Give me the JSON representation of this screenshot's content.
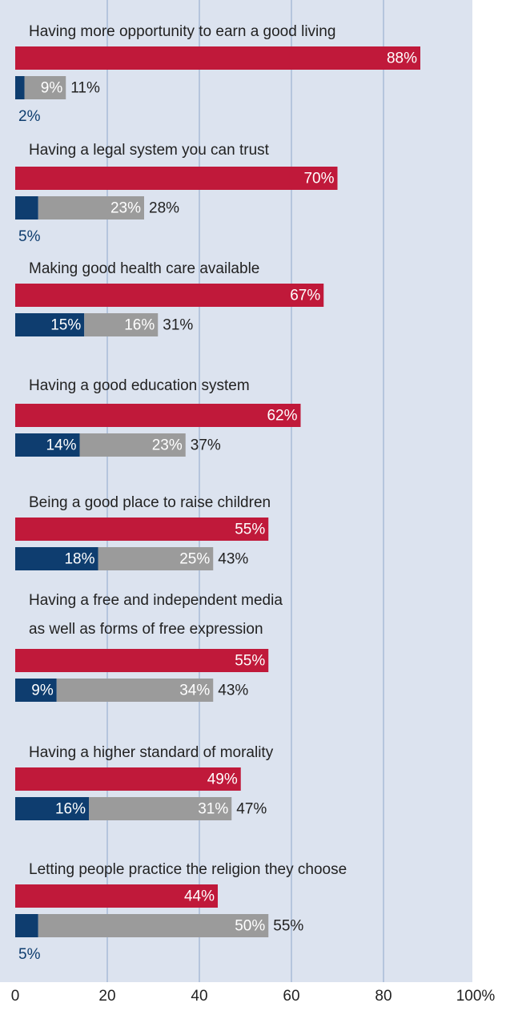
{
  "chart_data": {
    "type": "bar",
    "categories": [
      "Having more opportunity to earn a good living",
      "Having a legal system you can trust",
      "Making good health care available",
      "Having a good education system",
      "Being a good place to raise children",
      "Having a free and independent media\nas well as forms of free expression",
      "Having a higher standard of morality",
      "Letting people practice the religion they choose"
    ],
    "series": [
      {
        "color": "#c0193a",
        "values": [
          88,
          70,
          67,
          62,
          55,
          55,
          49,
          44
        ],
        "value_labels": [
          "88%",
          "70%",
          "67%",
          "62%",
          "55%",
          "55%",
          "49%",
          "44%"
        ]
      },
      {
        "color": "#0e3d6f",
        "values": [
          2,
          5,
          15,
          14,
          18,
          9,
          16,
          5
        ],
        "value_labels": [
          "2%",
          "5%",
          "15%",
          "14%",
          "18%",
          "9%",
          "16%",
          "5%"
        ]
      },
      {
        "color": "#9b9b9b",
        "values": [
          9,
          23,
          16,
          23,
          25,
          34,
          31,
          50
        ],
        "value_labels": [
          "9%",
          "23%",
          "16%",
          "23%",
          "25%",
          "34%",
          "31%",
          "50%"
        ]
      }
    ],
    "totals": {
      "values": [
        11,
        28,
        31,
        37,
        43,
        43,
        47,
        55
      ],
      "value_labels": [
        "11%",
        "28%",
        "31%",
        "37%",
        "43%",
        "43%",
        "47%",
        "55%"
      ]
    },
    "xlim": [
      0,
      100
    ],
    "xticks": [
      0,
      20,
      40,
      60,
      80,
      {
        "value": 100,
        "label": "100%"
      }
    ],
    "grid": true
  }
}
